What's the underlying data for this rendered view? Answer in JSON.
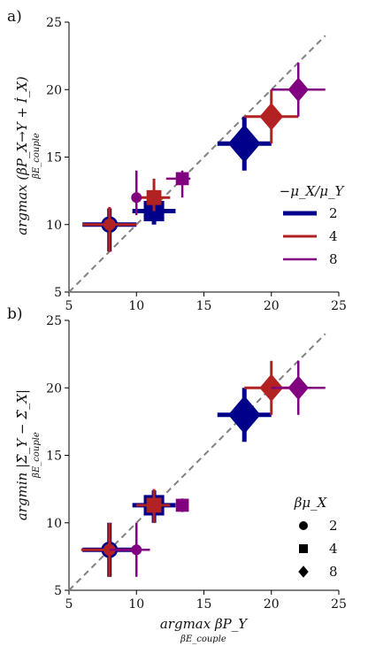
{
  "colors": {
    "mu2": "#00008b",
    "mu4": "#b22222",
    "mu8": "#800080",
    "diagonal": "#808080",
    "axis": "#000000"
  },
  "chart_data": [
    {
      "panel_label": "a)",
      "type": "scatter",
      "xlim": [
        5,
        25
      ],
      "ylim": [
        5,
        25
      ],
      "x_ticks": [
        "5",
        "10",
        "15",
        "20",
        "25"
      ],
      "y_ticks": [
        "5",
        "10",
        "15",
        "20",
        "25"
      ],
      "ylabel_main": "argmax (βP_X→Y + İ_X)",
      "ylabel_sub": "βE_couple",
      "xlabel_main": "",
      "xlabel_sub": "",
      "diagonal": true,
      "legend": {
        "title": "−μ_X/μ_Y",
        "entries": [
          {
            "label": "2",
            "color_key": "mu2"
          },
          {
            "label": "4",
            "color_key": "mu4"
          },
          {
            "label": "8",
            "color_key": "mu8"
          }
        ]
      },
      "points": [
        {
          "ratio": 2,
          "beta_mu": 2,
          "marker": "circle",
          "x": 8.0,
          "y": 10.0,
          "xerr": [
            6.0,
            10.0
          ],
          "yerr": [
            8.0,
            11.2
          ]
        },
        {
          "ratio": 2,
          "beta_mu": 4,
          "marker": "square",
          "x": 11.3,
          "y": 11.0,
          "xerr": [
            9.7,
            12.9
          ],
          "yerr": [
            10.0,
            12.3
          ]
        },
        {
          "ratio": 2,
          "beta_mu": 8,
          "marker": "diamond",
          "x": 18.0,
          "y": 16.0,
          "xerr": [
            16.0,
            20.0
          ],
          "yerr": [
            14.0,
            18.0
          ]
        },
        {
          "ratio": 4,
          "beta_mu": 2,
          "marker": "circle",
          "x": 8.0,
          "y": 10.0,
          "xerr": [
            6.0,
            10.0
          ],
          "yerr": [
            8.0,
            11.3
          ]
        },
        {
          "ratio": 4,
          "beta_mu": 4,
          "marker": "square",
          "x": 11.3,
          "y": 12.0,
          "xerr": [
            10.2,
            12.5
          ],
          "yerr": [
            11.0,
            13.4
          ]
        },
        {
          "ratio": 4,
          "beta_mu": 8,
          "marker": "diamond",
          "x": 20.0,
          "y": 18.0,
          "xerr": [
            18.0,
            22.0
          ],
          "yerr": [
            16.0,
            20.0
          ]
        },
        {
          "ratio": 8,
          "beta_mu": 2,
          "marker": "circle",
          "x": 10.0,
          "y": 12.0,
          "xerr": [
            9.7,
            10.4
          ],
          "yerr": [
            10.7,
            14.0
          ]
        },
        {
          "ratio": 8,
          "beta_mu": 4,
          "marker": "square",
          "x": 13.4,
          "y": 13.4,
          "xerr": [
            12.2,
            14.0
          ],
          "yerr": [
            12.0,
            14.0
          ]
        },
        {
          "ratio": 8,
          "beta_mu": 8,
          "marker": "diamond",
          "x": 22.0,
          "y": 20.0,
          "xerr": [
            20.0,
            24.0
          ],
          "yerr": [
            18.0,
            22.0
          ]
        }
      ]
    },
    {
      "panel_label": "b)",
      "type": "scatter",
      "xlim": [
        5,
        25
      ],
      "ylim": [
        5,
        25
      ],
      "x_ticks": [
        "5",
        "10",
        "15",
        "20",
        "25"
      ],
      "y_ticks": [
        "5",
        "10",
        "15",
        "20",
        "25"
      ],
      "ylabel_main": "argmin |Σ̇_Y − Σ̇_X|",
      "ylabel_sub": "βE_couple",
      "xlabel_main": "argmax βP_Y",
      "xlabel_sub": "βE_couple",
      "diagonal": true,
      "legend": {
        "title": "βμ_X",
        "entries": [
          {
            "label": "2",
            "marker": "circle"
          },
          {
            "label": "4",
            "marker": "square"
          },
          {
            "label": "8",
            "marker": "diamond"
          }
        ]
      },
      "points": [
        {
          "ratio": 2,
          "beta_mu": 2,
          "marker": "circle",
          "x": 8.0,
          "y": 8.0,
          "xerr": [
            6.0,
            10.0
          ],
          "yerr": [
            6.0,
            10.0
          ]
        },
        {
          "ratio": 2,
          "beta_mu": 4,
          "marker": "square",
          "x": 11.3,
          "y": 11.3,
          "xerr": [
            9.7,
            12.9
          ],
          "yerr": [
            10.0,
            12.4
          ]
        },
        {
          "ratio": 2,
          "beta_mu": 8,
          "marker": "diamond",
          "x": 18.0,
          "y": 18.0,
          "xerr": [
            16.0,
            20.0
          ],
          "yerr": [
            16.0,
            20.0
          ]
        },
        {
          "ratio": 4,
          "beta_mu": 2,
          "marker": "circle",
          "x": 8.0,
          "y": 8.0,
          "xerr": [
            5.9,
            10.0
          ],
          "yerr": [
            6.0,
            10.0
          ]
        },
        {
          "ratio": 4,
          "beta_mu": 4,
          "marker": "square",
          "x": 11.3,
          "y": 11.3,
          "xerr": [
            10.0,
            12.5
          ],
          "yerr": [
            10.0,
            12.5
          ]
        },
        {
          "ratio": 4,
          "beta_mu": 8,
          "marker": "diamond",
          "x": 20.0,
          "y": 20.0,
          "xerr": [
            18.0,
            22.0
          ],
          "yerr": [
            18.0,
            22.0
          ]
        },
        {
          "ratio": 8,
          "beta_mu": 2,
          "marker": "circle",
          "x": 10.0,
          "y": 8.0,
          "xerr": [
            8.0,
            11.0
          ],
          "yerr": [
            6.0,
            10.0
          ]
        },
        {
          "ratio": 8,
          "beta_mu": 4,
          "marker": "square",
          "x": 13.4,
          "y": 11.3,
          "xerr": [
            13.0,
            13.8
          ],
          "yerr": [
            10.8,
            11.8
          ]
        },
        {
          "ratio": 8,
          "beta_mu": 8,
          "marker": "diamond",
          "x": 22.0,
          "y": 20.0,
          "xerr": [
            20.0,
            24.0
          ],
          "yerr": [
            18.0,
            22.0
          ]
        }
      ]
    }
  ]
}
